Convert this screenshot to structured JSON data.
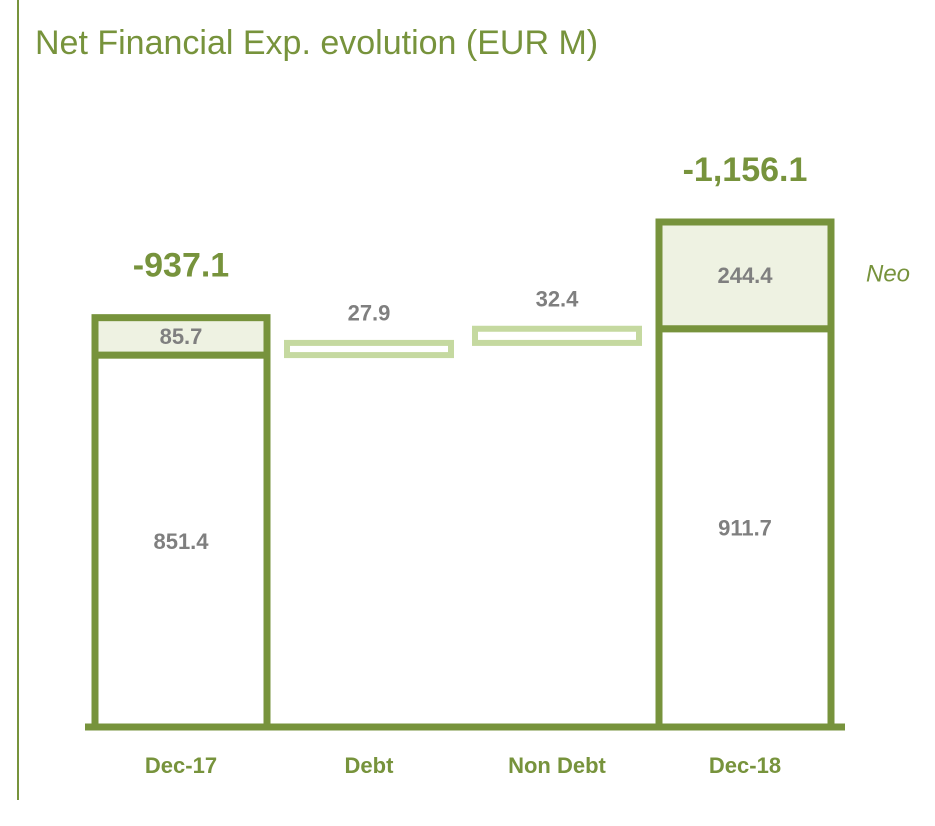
{
  "chart_data": {
    "type": "waterfall",
    "title": "Net Financial Exp. evolution (EUR M)",
    "categories": [
      "Dec-17",
      "Debt",
      "Non Debt",
      "Dec-18"
    ],
    "series": [
      {
        "values": [
          851.4,
          null,
          null,
          911.7
        ],
        "color": "#ffffff"
      },
      {
        "name": "Neo",
        "values": [
          85.7,
          null,
          null,
          244.4
        ],
        "color": "#eef2e2"
      }
    ],
    "changes": {
      "values": [
        null,
        27.9,
        32.4,
        null
      ],
      "color": "#c5d9a0"
    },
    "totals": {
      "values": [
        -937.1,
        null,
        null,
        -1156.1
      ],
      "value_labels": [
        "-937.1",
        null,
        null,
        "-1,156.1"
      ]
    },
    "color": "#77933c"
  }
}
